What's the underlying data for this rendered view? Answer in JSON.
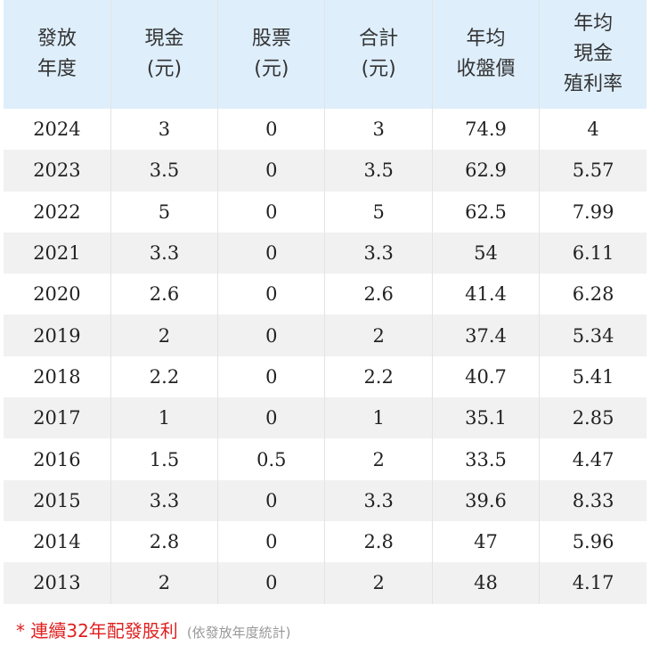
{
  "table": {
    "headers": [
      [
        "發放",
        "年度"
      ],
      [
        "現金",
        "(元)"
      ],
      [
        "股票",
        "(元)"
      ],
      [
        "合計",
        "(元)"
      ],
      [
        "年均",
        "收盤價"
      ],
      [
        "年均",
        "現金",
        "殖利率"
      ]
    ],
    "rows": [
      [
        2024,
        3,
        0,
        3,
        74.9,
        4
      ],
      [
        2023,
        3.5,
        0,
        3.5,
        62.9,
        5.57
      ],
      [
        2022,
        5,
        0,
        5,
        62.5,
        7.99
      ],
      [
        2021,
        3.3,
        0,
        3.3,
        54,
        6.11
      ],
      [
        2020,
        2.6,
        0,
        2.6,
        41.4,
        6.28
      ],
      [
        2019,
        2,
        0,
        2,
        37.4,
        5.34
      ],
      [
        2018,
        2.2,
        0,
        2.2,
        40.7,
        5.41
      ],
      [
        2017,
        1,
        0,
        1,
        35.1,
        2.85
      ],
      [
        2016,
        1.5,
        0.5,
        2,
        33.5,
        4.47
      ],
      [
        2015,
        3.3,
        0,
        3.3,
        39.6,
        8.33
      ],
      [
        2014,
        2.8,
        0,
        2.8,
        47,
        5.96
      ],
      [
        2013,
        2,
        0,
        2,
        48,
        4.17
      ]
    ]
  },
  "note": {
    "mark": "*",
    "text": "連續32年配發股利",
    "sub": "(依發放年度統計)"
  }
}
